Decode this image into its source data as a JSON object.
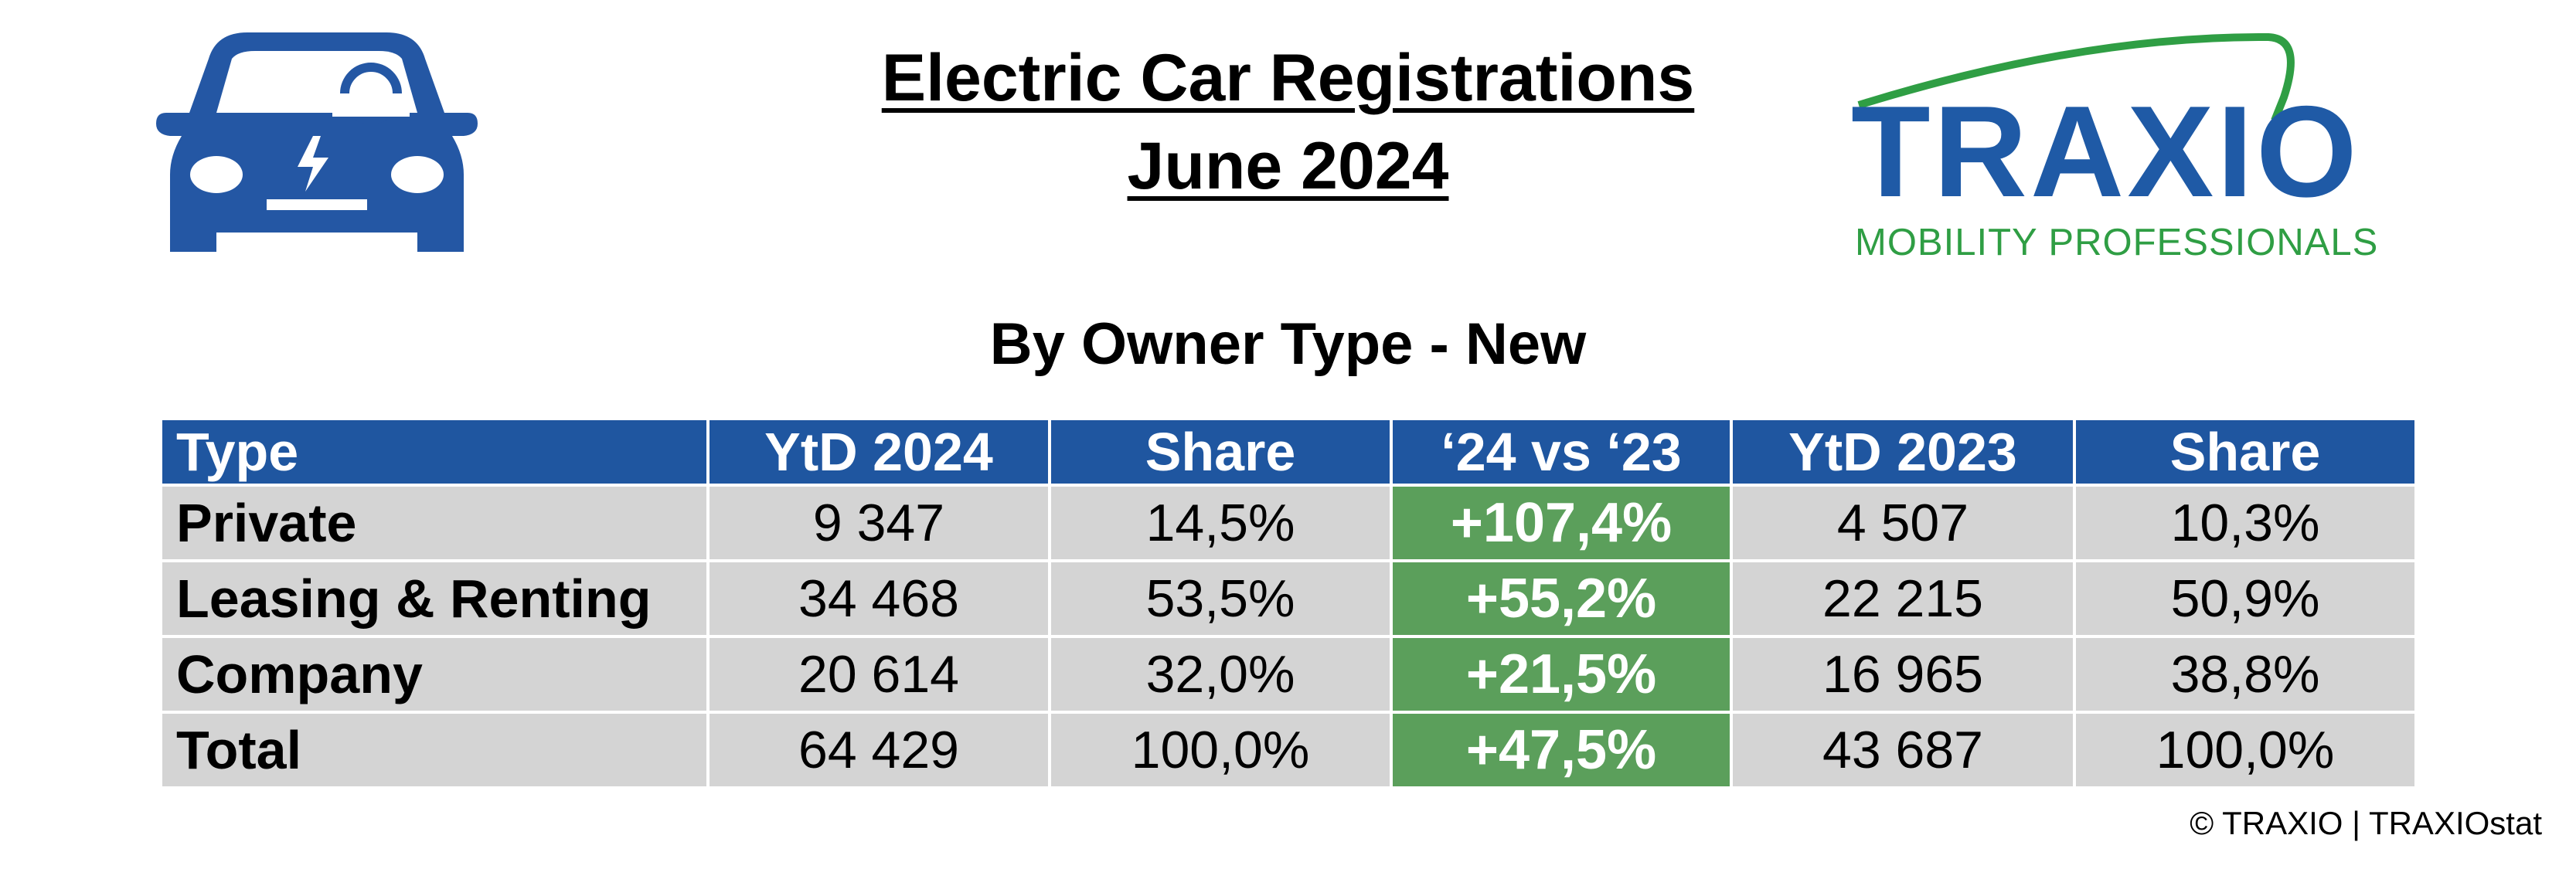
{
  "header": {
    "title": [
      "Electric Car Registrations",
      "June 2024"
    ],
    "logo": {
      "name": "TRAXIO",
      "tagline": "MOBILITY PROFESSIONALS"
    }
  },
  "subtitle": "By Owner Type - New",
  "table": {
    "columns": [
      "Type",
      "YtD 2024",
      "Share",
      "‘24 vs ‘23",
      "YtD 2023",
      "Share"
    ],
    "rows": [
      [
        "Private",
        "9 347",
        "14,5%",
        "+107,4%",
        "4 507",
        "10,3%"
      ],
      [
        "Leasing & Renting",
        "34 468",
        "53,5%",
        "+55,2%",
        "22 215",
        "50,9%"
      ],
      [
        "Company",
        "20 614",
        "32,0%",
        "+21,5%",
        "16 965",
        "38,8%"
      ],
      [
        "Total",
        "64 429",
        "100,0%",
        "+47,5%",
        "43 687",
        "100,0%"
      ]
    ]
  },
  "footer": "© TRAXIO | TRAXIOstat"
}
